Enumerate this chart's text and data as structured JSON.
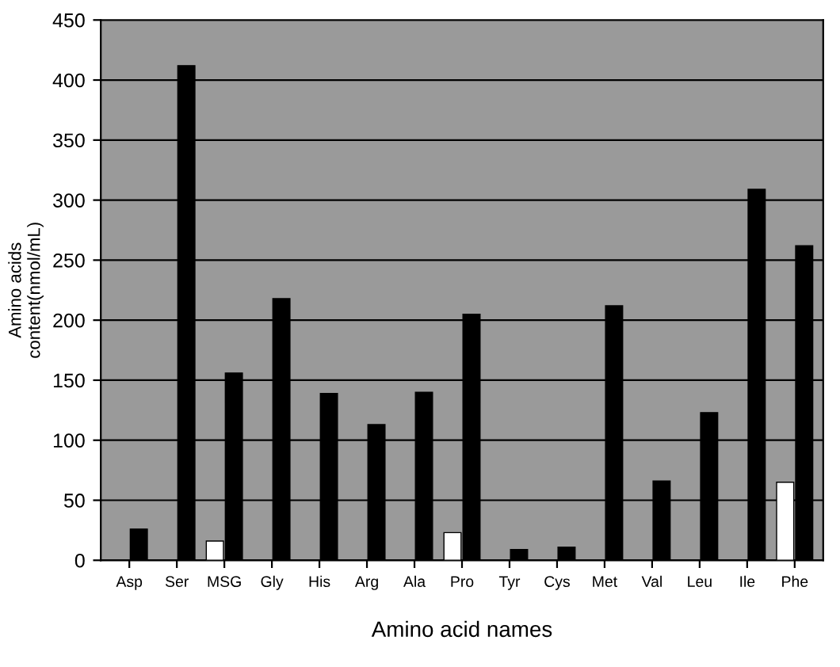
{
  "chart_data": {
    "type": "bar",
    "xlabel": "Amino acid names",
    "ylabel": "Amino acids\ncontent(nmol/mL)",
    "categories": [
      "Asp",
      "Ser",
      "MSG",
      "Gly",
      "His",
      "Arg",
      "Ala",
      "Pro",
      "Tyr",
      "Cys",
      "Met",
      "Val",
      "Leu",
      "Ile",
      "Phe"
    ],
    "series": [
      {
        "color": "#ffffff",
        "values": [
          null,
          null,
          16,
          null,
          null,
          null,
          null,
          23,
          null,
          null,
          null,
          null,
          null,
          null,
          65
        ]
      },
      {
        "color": "#000000",
        "values": [
          26,
          412,
          156,
          218,
          139,
          113,
          140,
          205,
          9,
          11,
          212,
          66,
          123,
          309,
          262
        ]
      }
    ],
    "ylim": [
      0,
      450
    ],
    "yticks": [
      0,
      50,
      100,
      150,
      200,
      250,
      300,
      350,
      400,
      450
    ],
    "grid": "y",
    "legend": false
  }
}
